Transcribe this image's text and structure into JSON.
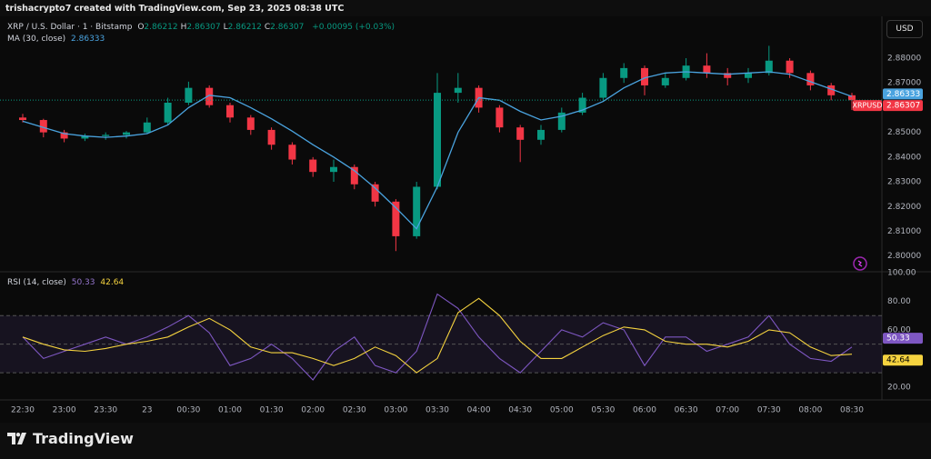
{
  "header": {
    "credit": "trishacrypto7 created with TradingView.com, Sep 23, 2025 08:38 UTC",
    "currency": "USD"
  },
  "footer": {
    "brand": "TradingView"
  },
  "chart_data": [
    {
      "type": "candlestick",
      "symbol": "XRP / U.S. Dollar · 1 · Bitstamp",
      "ohlc_legend": [
        {
          "label": "O",
          "value": 2.86212
        },
        {
          "label": "H",
          "value": 2.86307
        },
        {
          "label": "L",
          "value": 2.86212
        },
        {
          "label": "C",
          "value": 2.86307
        }
      ],
      "change": "+0.00095 (+0.03%)",
      "ticker": "XRPUSD",
      "last_price": 2.86307,
      "categories": [
        "22:30",
        null,
        "23:00",
        null,
        "23:30",
        null,
        "23",
        null,
        "00:30",
        null,
        "01:00",
        null,
        "01:30",
        null,
        "02:00",
        null,
        "02:30",
        null,
        "03:00",
        null,
        "03:30",
        null,
        "04:00",
        null,
        "04:30",
        null,
        "05:00",
        null,
        "05:30",
        null,
        "06:00",
        null,
        "06:30",
        null,
        "07:00",
        null,
        "07:30",
        null,
        "08:00",
        null,
        "08:30"
      ],
      "open": [
        2.856,
        2.855,
        2.85,
        2.8475,
        2.8485,
        2.849,
        2.85,
        2.854,
        2.862,
        2.868,
        2.861,
        2.856,
        2.851,
        2.845,
        2.839,
        2.834,
        2.836,
        2.829,
        2.822,
        2.808,
        2.828,
        2.866,
        2.868,
        2.86,
        2.852,
        2.847,
        2.851,
        2.858,
        2.864,
        2.872,
        2.876,
        2.869,
        2.872,
        2.877,
        2.874,
        2.872,
        2.874,
        2.879,
        2.874,
        2.869,
        2.865
      ],
      "high": [
        2.8575,
        2.8555,
        2.851,
        2.8495,
        2.85,
        2.8505,
        2.856,
        2.864,
        2.8705,
        2.869,
        2.862,
        2.857,
        2.852,
        2.846,
        2.84,
        2.839,
        2.837,
        2.83,
        2.823,
        2.83,
        2.874,
        2.874,
        2.869,
        2.861,
        2.853,
        2.853,
        2.86,
        2.866,
        2.874,
        2.878,
        2.877,
        2.874,
        2.88,
        2.882,
        2.876,
        2.876,
        2.885,
        2.88,
        2.875,
        2.87,
        2.866
      ],
      "low": [
        2.854,
        2.848,
        2.846,
        2.8465,
        2.847,
        2.8475,
        2.8495,
        2.853,
        2.861,
        2.86,
        2.854,
        2.849,
        2.843,
        2.837,
        2.832,
        2.83,
        2.827,
        2.82,
        2.802,
        2.807,
        2.827,
        2.862,
        2.858,
        2.85,
        2.838,
        2.845,
        2.85,
        2.857,
        2.863,
        2.87,
        2.865,
        2.868,
        2.871,
        2.872,
        2.869,
        2.87,
        2.873,
        2.872,
        2.867,
        2.863,
        2.859
      ],
      "close": [
        2.855,
        2.85,
        2.8475,
        2.8485,
        2.849,
        2.85,
        2.854,
        2.862,
        2.868,
        2.861,
        2.856,
        2.851,
        2.845,
        2.839,
        2.834,
        2.836,
        2.829,
        2.822,
        2.808,
        2.828,
        2.866,
        2.868,
        2.86,
        2.852,
        2.847,
        2.851,
        2.858,
        2.864,
        2.872,
        2.876,
        2.869,
        2.872,
        2.877,
        2.874,
        2.872,
        2.874,
        2.879,
        2.874,
        2.869,
        2.865,
        2.863
      ],
      "up_color": "#089981",
      "down_color": "#f23645",
      "series": [
        {
          "name": "MA (30, close)",
          "color": "#4aa3df",
          "last": 2.86333,
          "values": [
            2.8545,
            2.852,
            2.8495,
            2.8485,
            2.848,
            2.8485,
            2.8495,
            2.853,
            2.86,
            2.865,
            2.864,
            2.86,
            2.8555,
            2.8505,
            2.845,
            2.84,
            2.8345,
            2.8275,
            2.8195,
            2.811,
            2.828,
            2.85,
            2.864,
            2.863,
            2.8585,
            2.855,
            2.8565,
            2.859,
            2.8625,
            2.868,
            2.872,
            2.874,
            2.8745,
            2.874,
            2.8735,
            2.874,
            2.8745,
            2.8735,
            2.8705,
            2.8675,
            2.8645
          ]
        }
      ],
      "ylim": [
        2.794,
        2.8925
      ],
      "yticks": [
        {
          "value": 2.8,
          "label": "2.80000"
        },
        {
          "value": 2.81,
          "label": "2.81000"
        },
        {
          "value": 2.82,
          "label": "2.82000"
        },
        {
          "value": 2.83,
          "label": "2.83000"
        },
        {
          "value": 2.84,
          "label": "2.84000"
        },
        {
          "value": 2.85,
          "label": "2.85000"
        },
        {
          "value": 2.86,
          "label": "2.86000"
        },
        {
          "value": 2.87,
          "label": "2.87000"
        },
        {
          "value": 2.88,
          "label": "2.88000"
        }
      ],
      "grid": false
    },
    {
      "type": "line",
      "title": "RSI (14, close)",
      "series": [
        {
          "color": "#7e57c2",
          "last": 50.33,
          "values": [
            55,
            40,
            45,
            50,
            55,
            50,
            55,
            62,
            70,
            58,
            35,
            40,
            50,
            40,
            25,
            45,
            55,
            35,
            30,
            45,
            85,
            75,
            55,
            40,
            30,
            45,
            60,
            55,
            65,
            60,
            35,
            55,
            55,
            45,
            50,
            55,
            70,
            50,
            40,
            38,
            48
          ]
        },
        {
          "color": "#f5d33f",
          "last": 42.64,
          "values": [
            55,
            50,
            46,
            45,
            47,
            50,
            52,
            55,
            62,
            68,
            60,
            48,
            44,
            44,
            40,
            35,
            40,
            48,
            42,
            30,
            40,
            72,
            82,
            70,
            52,
            40,
            40,
            48,
            56,
            62,
            60,
            52,
            50,
            50,
            48,
            52,
            60,
            58,
            48,
            42,
            43
          ]
        }
      ],
      "levels": {
        "upper": 70,
        "middle": 50,
        "lower": 30
      },
      "ylim": [
        11,
        100
      ],
      "yticks": [
        {
          "value": 20,
          "label": "20.00"
        },
        {
          "value": 60,
          "label": "60.00"
        },
        {
          "value": 80,
          "label": "80.00"
        },
        {
          "value": 100,
          "label": "100.00"
        }
      ],
      "grid": false
    }
  ]
}
